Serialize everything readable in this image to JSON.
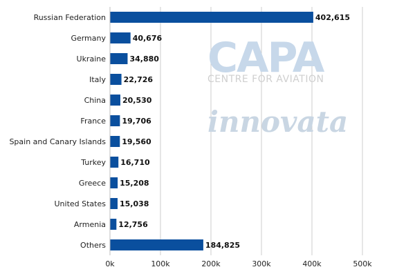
{
  "chart_data": {
    "type": "bar",
    "orientation": "horizontal",
    "categories": [
      "Russian Federation",
      "Germany",
      "Ukraine",
      "Italy",
      "China",
      "France",
      "Spain and Canary Islands",
      "Turkey",
      "Greece",
      "United States",
      "Armenia",
      "Others"
    ],
    "values": [
      402615,
      40676,
      34880,
      22726,
      20530,
      19706,
      19560,
      16710,
      15208,
      15038,
      12756,
      184825
    ],
    "value_labels": [
      "402,615",
      "40,676",
      "34,880",
      "22,726",
      "20,530",
      "19,706",
      "19,560",
      "16,710",
      "15,208",
      "15,038",
      "12,756",
      "184,825"
    ],
    "xlim": [
      0,
      500000
    ],
    "xticks": [
      0,
      100000,
      200000,
      300000,
      400000,
      500000
    ],
    "xtick_labels": [
      "0k",
      "100k",
      "200k",
      "300k",
      "400k",
      "500k"
    ],
    "grid": true,
    "bar_color": "#0a4f9e",
    "title": "",
    "xlabel": "",
    "ylabel": ""
  },
  "watermark": {
    "brand": "CAPA",
    "tagline": "CENTRE FOR AVIATION",
    "partner": "innovata"
  }
}
